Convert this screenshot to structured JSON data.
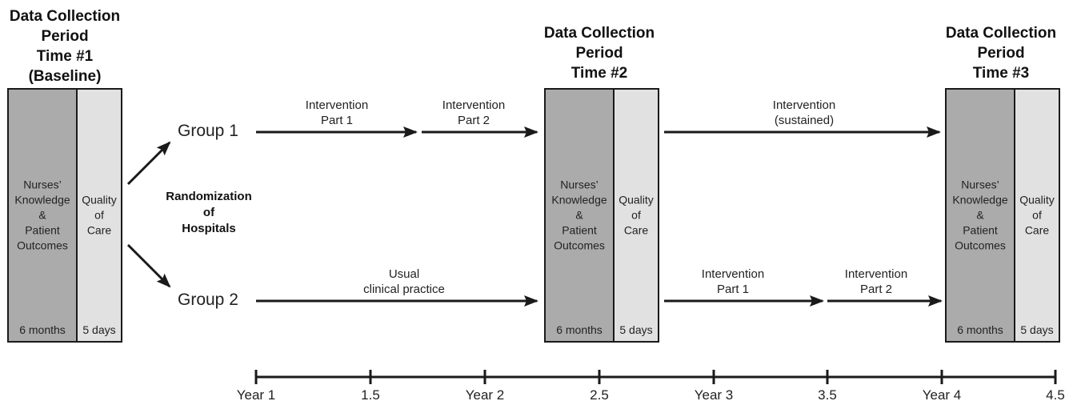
{
  "periods": [
    {
      "title": [
        "Data Collection",
        "Period",
        "Time #1",
        "(Baseline)"
      ],
      "measure_a": [
        "Nurses’",
        "Knowledge",
        "&",
        "Patient",
        "Outcomes"
      ],
      "measure_b": [
        "Quality",
        "of",
        "Care"
      ],
      "duration_a": "6 months",
      "duration_b": "5 days"
    },
    {
      "title": [
        "Data Collection",
        "Period",
        "Time #2"
      ],
      "measure_a": [
        "Nurses’",
        "Knowledge",
        "&",
        "Patient",
        "Outcomes"
      ],
      "measure_b": [
        "Quality",
        "of",
        "Care"
      ],
      "duration_a": "6 months",
      "duration_b": "5 days"
    },
    {
      "title": [
        "Data Collection",
        "Period",
        "Time #3"
      ],
      "measure_a": [
        "Nurses’",
        "Knowledge",
        "&",
        "Patient",
        "Outcomes"
      ],
      "measure_b": [
        "Quality",
        "of",
        "Care"
      ],
      "duration_a": "6 months",
      "duration_b": "5 days"
    }
  ],
  "randomization": [
    "Randomization",
    "of",
    "Hospitals"
  ],
  "groups": [
    "Group 1",
    "Group 2"
  ],
  "arrow_labels": {
    "g1_part1": [
      "Intervention",
      "Part 1"
    ],
    "g1_part2": [
      "Intervention",
      "Part 2"
    ],
    "g1_sustained": [
      "Intervention",
      "(sustained)"
    ],
    "g2_usual": [
      "Usual",
      "clinical practice"
    ],
    "g2_part1": [
      "Intervention",
      "Part 1"
    ],
    "g2_part2": [
      "Intervention",
      "Part 2"
    ]
  },
  "timeline": [
    "Year 1",
    "1.5",
    "Year 2",
    "2.5",
    "Year 3",
    "3.5",
    "Year 4",
    "4.5"
  ],
  "colors": {
    "dark_fill": "#ababab",
    "light_fill": "#e1e1e1",
    "line": "#1a1a1a"
  }
}
